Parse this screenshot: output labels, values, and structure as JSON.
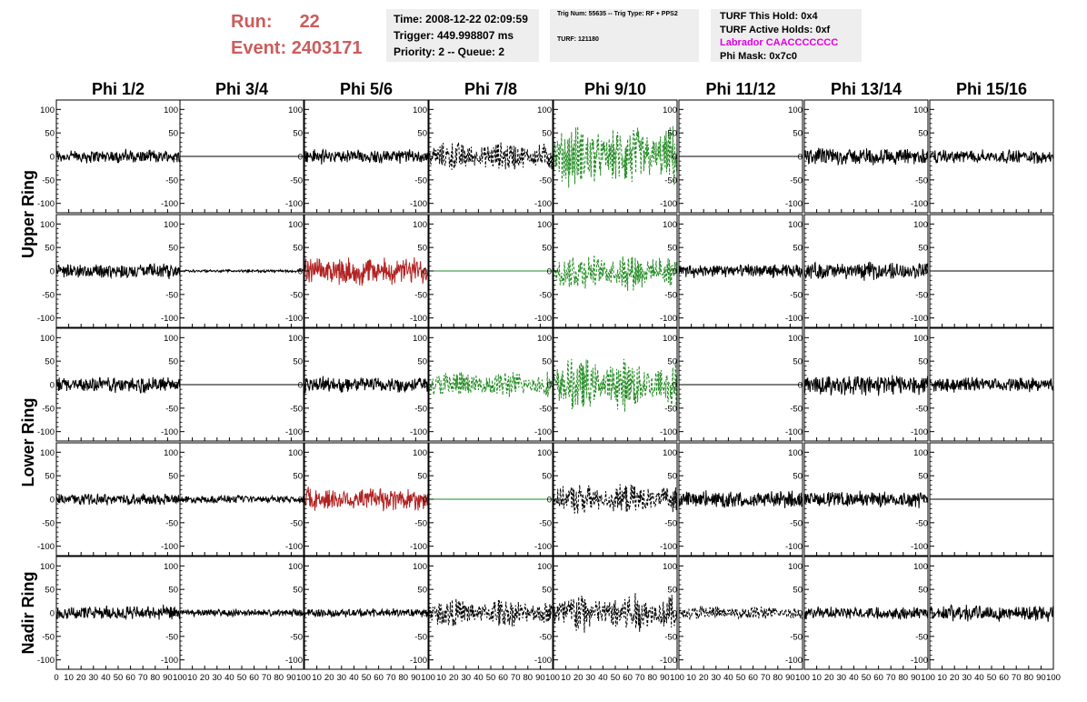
{
  "header": {
    "run_label": "Run:",
    "run_value": "22",
    "event_label": "Event:",
    "event_value": "2403171",
    "time": "Time: 2008-12-22 02:09:59",
    "trigger": "Trigger: 449.998807 ms",
    "priority": "Priority: 2 -- Queue: 2",
    "trig_num": "Trig Num: 55635 -- Trig Type: RF + PPS2",
    "turf": "TURF: 121180",
    "turf_this_hold": "TURF This Hold: 0x4",
    "turf_active_holds": "TURF Active Holds: 0xf",
    "labrador": "Labrador CAACCCCCCC",
    "phi_mask": "Phi Mask: 0x7c0"
  },
  "chart_data": {
    "type": "line",
    "title": "",
    "columns": [
      "Phi 1/2",
      "Phi 3/4",
      "Phi 5/6",
      "Phi 7/8",
      "Phi 9/10",
      "Phi 11/12",
      "Phi 13/14",
      "Phi 15/16"
    ],
    "ring_labels": [
      "Upper Ring",
      "Lower Ring",
      "Nadir Ring"
    ],
    "xlim": [
      0,
      100
    ],
    "ylim": [
      -120,
      120
    ],
    "x_tick_labels": [
      "0",
      "10",
      "20",
      "30",
      "40",
      "50",
      "60",
      "70",
      "80",
      "90",
      "100"
    ],
    "y_tick_labels": [
      "100",
      "50",
      "0",
      "-50",
      "-100"
    ],
    "colors": {
      "normal": "#000000",
      "triggered": "#228b22",
      "saturated": "#b22222"
    },
    "rows": [
      [
        {
          "amp": 14,
          "style": "solid",
          "color": "#000000"
        },
        {
          "amp": 0,
          "style": "solid",
          "color": "#000000"
        },
        {
          "amp": 15,
          "style": "solid",
          "color": "#000000"
        },
        {
          "amp": 28,
          "style": "dashed",
          "color": "#000000"
        },
        {
          "amp": 60,
          "style": "dashed",
          "color": "#228b22"
        },
        {
          "amp": 0,
          "style": "solid",
          "color": "#000000"
        },
        {
          "amp": 18,
          "style": "solid",
          "color": "#000000"
        },
        {
          "amp": 14,
          "style": "solid",
          "color": "#000000"
        }
      ],
      [
        {
          "amp": 16,
          "style": "solid",
          "color": "#000000"
        },
        {
          "amp": 3,
          "style": "solid",
          "color": "#000000"
        },
        {
          "amp": 28,
          "style": "solid",
          "color": "#b22222"
        },
        {
          "amp": 0,
          "style": "solid",
          "color": "#228b22"
        },
        {
          "amp": 35,
          "style": "dashed",
          "color": "#228b22"
        },
        {
          "amp": 14,
          "style": "solid",
          "color": "#000000"
        },
        {
          "amp": 18,
          "style": "solid",
          "color": "#000000"
        },
        {
          "amp": 0,
          "style": "solid",
          "color": "#000000"
        }
      ],
      [
        {
          "amp": 17,
          "style": "solid",
          "color": "#000000"
        },
        {
          "amp": 0,
          "style": "solid",
          "color": "#000000"
        },
        {
          "amp": 17,
          "style": "solid",
          "color": "#000000"
        },
        {
          "amp": 26,
          "style": "dashed",
          "color": "#228b22"
        },
        {
          "amp": 50,
          "style": "dashed",
          "color": "#228b22"
        },
        {
          "amp": 0,
          "style": "solid",
          "color": "#000000"
        },
        {
          "amp": 22,
          "style": "solid",
          "color": "#000000"
        },
        {
          "amp": 15,
          "style": "solid",
          "color": "#000000"
        }
      ],
      [
        {
          "amp": 12,
          "style": "solid",
          "color": "#000000"
        },
        {
          "amp": 8,
          "style": "solid",
          "color": "#000000"
        },
        {
          "amp": 26,
          "style": "solid",
          "color": "#b22222"
        },
        {
          "amp": 0,
          "style": "solid",
          "color": "#228b22"
        },
        {
          "amp": 28,
          "style": "dashed",
          "color": "#000000"
        },
        {
          "amp": 18,
          "style": "solid",
          "color": "#000000"
        },
        {
          "amp": 17,
          "style": "solid",
          "color": "#000000"
        },
        {
          "amp": 0,
          "style": "solid",
          "color": "#000000"
        }
      ],
      [
        {
          "amp": 15,
          "style": "solid",
          "color": "#000000"
        },
        {
          "amp": 8,
          "style": "solid",
          "color": "#000000"
        },
        {
          "amp": 9,
          "style": "solid",
          "color": "#000000"
        },
        {
          "amp": 27,
          "style": "dashed",
          "color": "#000000"
        },
        {
          "amp": 38,
          "style": "dashed",
          "color": "#000000"
        },
        {
          "amp": 14,
          "style": "dashed",
          "color": "#000000"
        },
        {
          "amp": 13,
          "style": "solid",
          "color": "#000000"
        },
        {
          "amp": 17,
          "style": "solid",
          "color": "#000000"
        }
      ]
    ]
  }
}
